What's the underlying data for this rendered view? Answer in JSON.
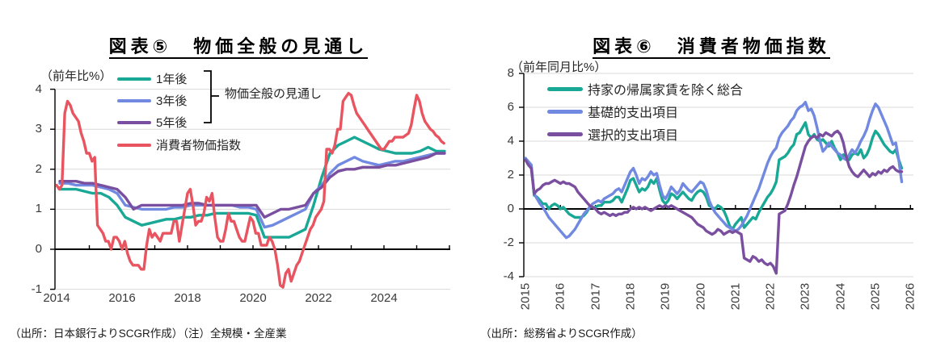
{
  "page": {
    "background": "#FFFFFF"
  },
  "chart_data": [
    {
      "type": "line",
      "title": "図表⑤　物価全般の見通し",
      "unit_label": "（前年比%）",
      "source_note": "（出所：日本銀行よりSCGR作成）（注）全規模・全産業",
      "legend": {
        "group_label": "物価全般の見通し",
        "position": "top-left-inside"
      },
      "xlim": [
        2013.95,
        2026.05
      ],
      "ylim": [
        -1,
        4
      ],
      "grid": true,
      "y_ticks": [
        4,
        3,
        2,
        1,
        0,
        -1
      ],
      "x_ticks": [
        2014,
        2015,
        2016,
        2017,
        2018,
        2019,
        2020,
        2021,
        2022,
        2023,
        2024,
        2025,
        2026
      ],
      "x_tick_labels": [
        2014,
        2016,
        2018,
        2020,
        2022,
        2024
      ],
      "x_labels_rotated": false,
      "series": [
        {
          "name": "1年後",
          "color": "#1AA896",
          "x_start": 2014.1,
          "x_step": 0.25,
          "values": [
            1.5,
            1.5,
            1.5,
            1.45,
            1.4,
            1.4,
            1.3,
            1.1,
            0.8,
            0.7,
            0.6,
            0.65,
            0.7,
            0.75,
            0.75,
            0.8,
            0.8,
            0.85,
            0.85,
            0.9,
            0.9,
            0.9,
            0.9,
            0.9,
            0.85,
            0.3,
            0.3,
            0.3,
            0.3,
            0.4,
            0.5,
            1.1,
            1.8,
            2.4,
            2.6,
            2.7,
            2.8,
            2.7,
            2.6,
            2.5,
            2.45,
            2.4,
            2.4,
            2.4,
            2.45,
            2.55,
            2.45,
            2.45
          ]
        },
        {
          "name": "3年後",
          "color": "#7189E0",
          "x_start": 2014.1,
          "x_step": 0.25,
          "values": [
            1.65,
            1.65,
            1.6,
            1.6,
            1.6,
            1.55,
            1.5,
            1.4,
            1.1,
            1.05,
            1.0,
            1.0,
            1.0,
            1.0,
            1.05,
            1.05,
            1.1,
            1.1,
            1.1,
            1.1,
            1.1,
            1.1,
            1.05,
            1.05,
            1.0,
            0.55,
            0.6,
            0.7,
            0.8,
            0.9,
            1.0,
            1.4,
            1.6,
            1.9,
            2.1,
            2.2,
            2.3,
            2.2,
            2.15,
            2.1,
            2.15,
            2.2,
            2.2,
            2.25,
            2.3,
            2.35,
            2.4,
            2.4
          ]
        },
        {
          "name": "5年後",
          "color": "#7A4FA0",
          "x_start": 2014.1,
          "x_step": 0.25,
          "values": [
            1.7,
            1.7,
            1.7,
            1.65,
            1.65,
            1.6,
            1.55,
            1.5,
            1.3,
            1.0,
            1.1,
            1.1,
            1.1,
            1.1,
            1.1,
            1.1,
            1.15,
            1.15,
            1.1,
            1.1,
            1.1,
            1.1,
            1.1,
            1.1,
            1.1,
            0.8,
            0.9,
            1.0,
            1.0,
            1.05,
            1.1,
            1.4,
            1.55,
            1.8,
            1.95,
            2.0,
            2.0,
            2.05,
            2.05,
            2.05,
            2.1,
            2.1,
            2.15,
            2.2,
            2.25,
            2.3,
            2.4,
            2.4
          ]
        },
        {
          "name": "消費者物価指数",
          "color": "#E85560",
          "x_start": 2014.0,
          "x_step": 0.08333,
          "values": [
            1.6,
            1.5,
            1.6,
            3.4,
            3.7,
            3.6,
            3.4,
            3.3,
            3.2,
            2.9,
            2.7,
            2.4,
            2.4,
            2.2,
            2.3,
            0.6,
            0.5,
            0.4,
            0.2,
            0.2,
            0.0,
            0.3,
            0.3,
            0.2,
            0.0,
            0.2,
            -0.1,
            -0.3,
            -0.4,
            -0.4,
            -0.4,
            -0.5,
            -0.5,
            0.1,
            0.5,
            0.3,
            0.4,
            0.3,
            0.2,
            0.4,
            0.4,
            0.4,
            0.4,
            0.7,
            0.7,
            0.2,
            0.6,
            1.0,
            1.4,
            1.5,
            1.1,
            0.6,
            0.7,
            0.7,
            0.9,
            1.3,
            1.2,
            1.4,
            0.8,
            0.3,
            0.2,
            0.2,
            0.5,
            0.9,
            0.7,
            0.7,
            0.5,
            0.3,
            0.2,
            0.2,
            0.5,
            0.8,
            0.7,
            0.4,
            0.4,
            0.1,
            0.1,
            0.1,
            0.3,
            0.2,
            0.0,
            -0.4,
            -0.9,
            -0.95,
            -0.6,
            -0.5,
            -0.8,
            -0.6,
            -0.4,
            -0.3,
            -0.1,
            0.1,
            0.3,
            0.5,
            0.6,
            0.8,
            0.9,
            1.0,
            1.2,
            2.5,
            2.5,
            2.4,
            2.6,
            3.0,
            3.0,
            3.7,
            3.8,
            3.9,
            3.85,
            3.6,
            3.4,
            3.3,
            3.2,
            3.1,
            3.0,
            2.9,
            2.8,
            2.7,
            2.6,
            2.5,
            2.5,
            2.6,
            2.7,
            2.7,
            2.8,
            2.8,
            2.8,
            2.8,
            2.85,
            2.9,
            3.1,
            3.5,
            3.85,
            3.7,
            3.4,
            3.2,
            3.1,
            3.0,
            2.95,
            2.85,
            2.8,
            2.7,
            2.65
          ]
        }
      ]
    },
    {
      "type": "line",
      "title": "図表⑥　消費者物価指数",
      "unit_label": "（前年同月比%）",
      "source_note": "（出所：総務省よりSCGR作成）",
      "legend": {
        "position": "top-left-inside"
      },
      "xlim": [
        2014.95,
        2026.2
      ],
      "ylim": [
        -4,
        8
      ],
      "grid": true,
      "y_ticks": [
        8,
        6,
        4,
        2,
        0,
        -2,
        -4
      ],
      "x_ticks": [
        2015,
        2016,
        2017,
        2018,
        2019,
        2020,
        2021,
        2022,
        2023,
        2024,
        2025,
        2026
      ],
      "x_tick_labels": [
        2015,
        2016,
        2017,
        2018,
        2019,
        2020,
        2021,
        2022,
        2023,
        2024,
        2025,
        2026
      ],
      "x_labels_rotated": true,
      "series": [
        {
          "name": "持家の帰属家賃を除く総合",
          "color": "#1AA896",
          "x_start": 2015.0,
          "x_step": 0.08333,
          "values": [
            2.9,
            2.7,
            2.6,
            0.8,
            0.7,
            0.5,
            0.3,
            0.3,
            0.0,
            0.2,
            0.3,
            0.2,
            0.0,
            0.1,
            -0.1,
            -0.3,
            -0.4,
            -0.5,
            -0.5,
            -0.5,
            -0.4,
            -0.2,
            0.1,
            0.1,
            0.1,
            0.2,
            0.2,
            0.4,
            0.4,
            0.4,
            0.5,
            0.7,
            0.7,
            0.4,
            0.8,
            1.2,
            1.7,
            1.8,
            1.4,
            1.0,
            1.2,
            1.1,
            1.3,
            1.7,
            1.5,
            1.8,
            1.1,
            0.5,
            0.3,
            0.5,
            0.9,
            0.8,
            0.6,
            0.8,
            1.0,
            0.8,
            0.6,
            0.5,
            0.8,
            1.0,
            1.1,
            1.0,
            0.7,
            0.2,
            0.1,
            0.0,
            0.2,
            0.1,
            -0.1,
            -0.5,
            -1.0,
            -1.2,
            -0.9,
            -0.7,
            -0.5,
            -1.1,
            -0.9,
            -0.7,
            -0.5,
            -0.6,
            -0.2,
            0.1,
            0.4,
            0.7,
            0.9,
            1.2,
            1.6,
            2.9,
            3.0,
            3.1,
            3.3,
            3.6,
            3.8,
            4.4,
            4.5,
            4.8,
            5.1,
            4.4,
            4.2,
            4.4,
            4.1,
            4.0,
            4.1,
            3.9,
            3.7,
            4.0,
            3.6,
            3.3,
            2.9,
            3.2,
            3.1,
            2.9,
            3.2,
            3.3,
            3.2,
            3.5,
            3.0,
            3.2,
            3.6,
            4.2,
            4.6,
            4.4,
            4.1,
            3.8,
            3.6,
            3.4,
            3.3,
            3.5,
            2.9,
            2.4
          ]
        },
        {
          "name": "基礎的支出項目",
          "color": "#7189E0",
          "x_start": 2015.0,
          "x_step": 0.08333,
          "values": [
            3.0,
            2.8,
            2.6,
            0.9,
            0.6,
            0.3,
            0.1,
            -0.2,
            -0.5,
            -0.7,
            -0.9,
            -1.1,
            -1.3,
            -1.5,
            -1.7,
            -1.6,
            -1.4,
            -1.2,
            -0.9,
            -0.6,
            -0.3,
            -0.1,
            0.1,
            0.3,
            0.4,
            0.5,
            0.4,
            0.6,
            0.7,
            0.8,
            0.9,
            1.1,
            1.2,
            1.0,
            1.4,
            1.8,
            2.2,
            2.4,
            2.0,
            1.5,
            1.8,
            1.7,
            1.9,
            2.2,
            2.0,
            2.1,
            1.4,
            0.8,
            0.6,
            0.9,
            1.3,
            1.1,
            0.9,
            1.1,
            1.5,
            1.3,
            1.1,
            1.0,
            1.2,
            1.4,
            1.6,
            1.5,
            1.1,
            0.5,
            0.1,
            -0.2,
            -0.4,
            -0.6,
            -0.8,
            -1.0,
            -1.1,
            -1.2,
            -1.3,
            -1.2,
            -1.0,
            -0.7,
            -0.4,
            0.0,
            0.4,
            0.8,
            1.2,
            1.7,
            2.2,
            2.7,
            3.1,
            3.4,
            3.6,
            4.2,
            4.5,
            4.7,
            4.9,
            5.2,
            5.4,
            5.8,
            6.0,
            6.1,
            6.3,
            5.8,
            5.9,
            5.5,
            4.8,
            4.0,
            3.4,
            3.6,
            3.9,
            3.7,
            3.5,
            3.3,
            3.2,
            3.0,
            2.9,
            3.2,
            3.5,
            3.3,
            3.6,
            4.0,
            4.3,
            4.7,
            5.3,
            5.8,
            6.2,
            6.0,
            5.6,
            5.2,
            4.8,
            4.3,
            3.8,
            3.9,
            2.9,
            1.6
          ]
        },
        {
          "name": "選択的支出項目",
          "color": "#7A4FA0",
          "x_start": 2015.0,
          "x_step": 0.08333,
          "values": [
            2.9,
            2.6,
            2.4,
            0.9,
            1.1,
            1.2,
            1.4,
            1.5,
            1.5,
            1.6,
            1.7,
            1.6,
            1.5,
            1.6,
            1.5,
            1.5,
            1.4,
            1.3,
            1.0,
            0.8,
            0.6,
            0.4,
            0.2,
            0.1,
            0.0,
            -0.2,
            -0.3,
            -0.2,
            -0.3,
            -0.4,
            -0.3,
            -0.4,
            -0.3,
            -0.3,
            -0.2,
            -0.2,
            0.0,
            0.1,
            0.0,
            0.1,
            0.0,
            0.1,
            0.0,
            -0.1,
            0.0,
            0.1,
            0.2,
            0.1,
            0.2,
            0.1,
            0.2,
            0.1,
            0.0,
            -0.1,
            -0.2,
            -0.3,
            -0.4,
            -0.5,
            -0.7,
            -0.9,
            -1.0,
            -1.1,
            -1.3,
            -1.4,
            -1.5,
            -1.4,
            -1.2,
            -1.3,
            -1.5,
            -1.4,
            -1.3,
            -1.4,
            -1.3,
            -1.4,
            -1.5,
            -2.9,
            -3.0,
            -3.1,
            -2.8,
            -2.9,
            -3.1,
            -3.0,
            -3.2,
            -3.3,
            -3.2,
            -3.4,
            -3.8,
            -0.3,
            -0.2,
            -0.1,
            0.3,
            0.8,
            1.4,
            1.9,
            2.5,
            3.1,
            3.7,
            4.0,
            4.2,
            4.3,
            4.2,
            4.4,
            4.3,
            4.5,
            4.4,
            4.3,
            4.5,
            4.6,
            4.4,
            3.9,
            3.1,
            2.5,
            2.2,
            2.0,
            1.9,
            2.1,
            2.3,
            2.1,
            1.9,
            2.1,
            2.0,
            2.2,
            2.1,
            2.3,
            2.2,
            2.4,
            2.5,
            2.3,
            2.2,
            2.2
          ]
        }
      ]
    }
  ]
}
